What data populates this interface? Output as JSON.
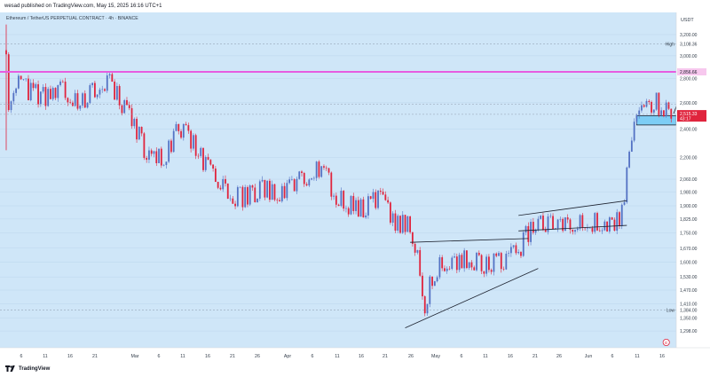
{
  "header": {
    "published": "wesad published on TradingView.com, May 15, 2025 16:16 UTC+1"
  },
  "footer": {
    "brand": "TradingView"
  },
  "colors": {
    "background": "#cfe6f8",
    "up_candle": "#5472c4",
    "down_candle": "#e0243d",
    "high_line": "#ee6bd4",
    "target_line": "#e65de0",
    "zone_fill": "#7ccdf5",
    "current_price_bg": "#e0243d",
    "axis_text": "#36404d"
  },
  "chart_data": {
    "type": "candlestick",
    "title": "Ethereum / TetherUS PERPETUAL CONTRACT · 4h · BINANCE",
    "currency": "USDT",
    "ylim": [
      1240,
      3350
    ],
    "y_scale": "log",
    "y_ticks": [
      "3,200.00",
      "3,000.00",
      "2,800.00",
      "2,600.00",
      "2,400.00",
      "2,200.00",
      "2,060.00",
      "1,980.00",
      "1,900.00",
      "1,825.00",
      "1,750.00",
      "1,670.00",
      "1,600.00",
      "1,530.00",
      "1,470.00",
      "1,410.00",
      "1,350.00",
      "1,298.00"
    ],
    "x_labels": [
      "6",
      "11",
      "16",
      "21",
      "Mar",
      "6",
      "11",
      "16",
      "21",
      "26",
      "Apr",
      "6",
      "11",
      "16",
      "21",
      "26",
      "May",
      "6",
      "11",
      "16",
      "21",
      "26",
      "Jun",
      "6",
      "11",
      "16"
    ],
    "price_path": [
      [
        0,
        3050
      ],
      [
        0.3,
        2600
      ],
      [
        2,
        2770
      ],
      [
        7,
        2640
      ],
      [
        12,
        2700
      ],
      [
        15,
        2610
      ],
      [
        19,
        2760
      ],
      [
        21,
        2780
      ],
      [
        23,
        2620
      ],
      [
        26,
        2440
      ],
      [
        29,
        2180
      ],
      [
        32,
        2200
      ],
      [
        35,
        2420
      ],
      [
        38,
        2300
      ],
      [
        41,
        2130
      ],
      [
        43,
        2070
      ],
      [
        45,
        1970
      ],
      [
        48,
        1950
      ],
      [
        52,
        2000
      ],
      [
        56,
        1960
      ],
      [
        60,
        2060
      ],
      [
        63,
        2140
      ],
      [
        65,
        2070
      ],
      [
        67,
        1960
      ],
      [
        70,
        1900
      ],
      [
        73,
        1890
      ],
      [
        76,
        1950
      ],
      [
        79,
        1810
      ],
      [
        82,
        1800
      ],
      [
        84,
        1560
      ],
      [
        85,
        1400
      ],
      [
        86.5,
        1530
      ],
      [
        88,
        1590
      ],
      [
        91,
        1600
      ],
      [
        94,
        1620
      ],
      [
        97,
        1580
      ],
      [
        100,
        1600
      ],
      [
        102,
        1620
      ],
      [
        103,
        1640
      ],
      [
        104,
        1600
      ],
      [
        105,
        1720
      ],
      [
        107,
        1790
      ],
      [
        110,
        1810
      ],
      [
        113,
        1790
      ],
      [
        116,
        1800
      ],
      [
        119,
        1810
      ],
      [
        121,
        1790
      ],
      [
        123,
        1780
      ],
      [
        124,
        1820
      ],
      [
        125,
        1870
      ],
      [
        126.5,
        2200
      ],
      [
        127.5,
        2500
      ],
      [
        128.5,
        2580
      ],
      [
        129.5,
        2520
      ],
      [
        130.5,
        2560
      ],
      [
        132,
        2620
      ],
      [
        133,
        2500
      ],
      [
        134,
        2650
      ],
      [
        135,
        2520
      ]
    ],
    "levels": [
      {
        "label": "High",
        "value": "3,108.36",
        "price": 3108.36
      },
      {
        "label": "Low",
        "value": "1,384.00",
        "price": 1384
      }
    ],
    "target_level": {
      "value": "2,856.66",
      "price": 2856.66
    },
    "current_price": {
      "value": "2,515.33",
      "countdown": "43:17",
      "price": 2515.33
    },
    "zone": {
      "top": 2500,
      "bottom": 2430,
      "start_index": 128
    },
    "channels": [
      {
        "name": "rising-wedge-upper",
        "from": [
          82,
          1700
        ],
        "to": [
          106,
          1720
        ]
      },
      {
        "name": "rising-wedge-lower",
        "from": [
          81,
          1310
        ],
        "to": [
          108,
          1570
        ]
      },
      {
        "name": "bear-flag-upper",
        "from": [
          104,
          1845
        ],
        "to": [
          126,
          1930
        ]
      },
      {
        "name": "bear-flag-lower",
        "from": [
          104,
          1760
        ],
        "to": [
          126,
          1790
        ]
      }
    ],
    "projection": {
      "from": [
        135.5,
        2515
      ],
      "to": [
        138.5,
        2845
      ]
    },
    "event_marker": {
      "label": "E",
      "x_index": 134
    }
  }
}
